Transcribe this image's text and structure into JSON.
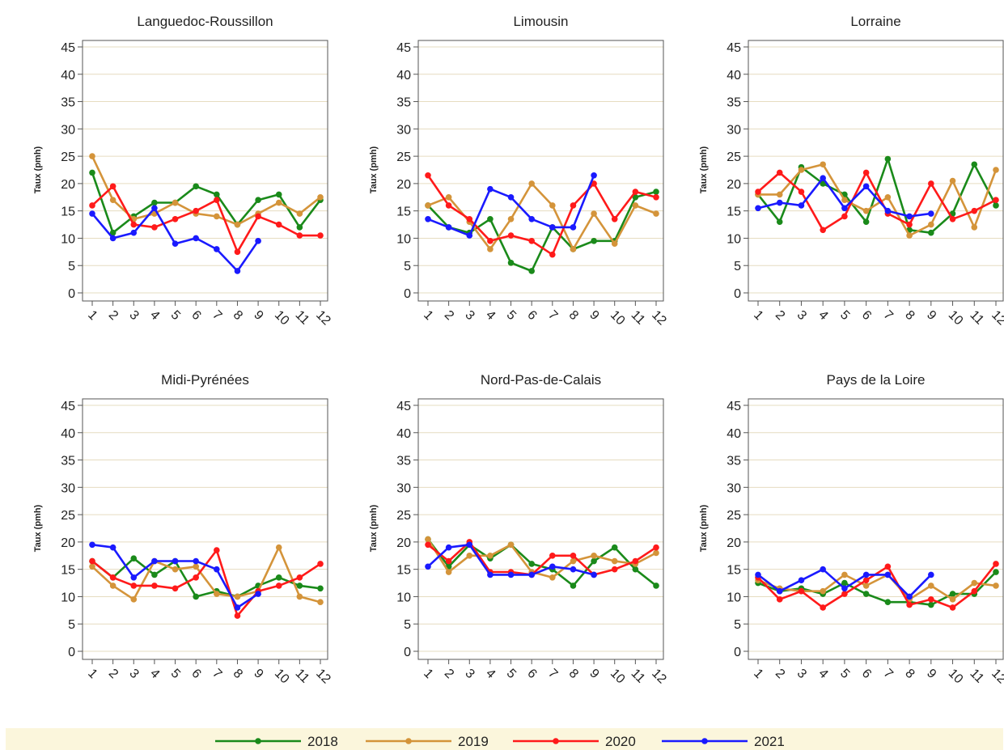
{
  "legend": {
    "items": [
      {
        "label": "2018",
        "color": "#1a8a1a"
      },
      {
        "label": "2019",
        "color": "#d4943a"
      },
      {
        "label": "2020",
        "color": "#ff1a1a"
      },
      {
        "label": "2021",
        "color": "#1a1aff"
      }
    ],
    "background": "#fbf6dc"
  },
  "chart_data": [
    {
      "type": "line",
      "title": "Languedoc-Roussillon",
      "ylabel": "Taux (pmh)",
      "x": [
        "1",
        "2",
        "3",
        "4",
        "5",
        "6",
        "7",
        "8",
        "9",
        "10",
        "11",
        "12"
      ],
      "ylim": [
        0,
        45
      ],
      "yticks": [
        0,
        5,
        10,
        15,
        20,
        25,
        30,
        35,
        40,
        45
      ],
      "grid": true,
      "series": [
        {
          "name": "2018",
          "values": [
            22.0,
            11.0,
            14.0,
            16.5,
            16.5,
            19.5,
            18.0,
            12.5,
            17.0,
            18.0,
            12.0,
            17.0
          ]
        },
        {
          "name": "2019",
          "values": [
            25.0,
            17.0,
            13.5,
            14.5,
            16.5,
            14.5,
            14.0,
            12.5,
            14.5,
            16.5,
            14.5,
            17.5
          ]
        },
        {
          "name": "2020",
          "values": [
            16.0,
            19.5,
            12.5,
            12.0,
            13.5,
            15.0,
            17.0,
            7.5,
            14.0,
            12.5,
            10.5,
            10.5
          ]
        },
        {
          "name": "2021",
          "values": [
            14.5,
            10.0,
            11.0,
            15.5,
            9.0,
            10.0,
            8.0,
            4.0,
            9.5,
            null,
            null,
            null
          ]
        }
      ]
    },
    {
      "type": "line",
      "title": "Limousin",
      "ylabel": "Taux (pmh)",
      "x": [
        "1",
        "2",
        "3",
        "4",
        "5",
        "6",
        "7",
        "8",
        "9",
        "10",
        "11",
        "12"
      ],
      "ylim": [
        0,
        45
      ],
      "yticks": [
        0,
        5,
        10,
        15,
        20,
        25,
        30,
        35,
        40,
        45
      ],
      "grid": true,
      "series": [
        {
          "name": "2018",
          "values": [
            16.0,
            12.0,
            11.0,
            13.5,
            5.5,
            4.0,
            12.0,
            8.0,
            9.5,
            9.5,
            17.5,
            18.5
          ]
        },
        {
          "name": "2019",
          "values": [
            16.0,
            17.5,
            13.0,
            8.0,
            13.5,
            20.0,
            16.0,
            8.0,
            14.5,
            9.0,
            16.0,
            14.5
          ]
        },
        {
          "name": "2020",
          "values": [
            21.5,
            16.0,
            13.5,
            9.5,
            10.5,
            9.5,
            7.0,
            16.0,
            20.0,
            13.5,
            18.5,
            17.5
          ]
        },
        {
          "name": "2021",
          "values": [
            13.5,
            12.0,
            10.5,
            19.0,
            17.5,
            13.5,
            12.0,
            12.0,
            21.5,
            null,
            null,
            null
          ]
        }
      ]
    },
    {
      "type": "line",
      "title": "Lorraine",
      "ylabel": "Taux (pmh)",
      "x": [
        "1",
        "2",
        "3",
        "4",
        "5",
        "6",
        "7",
        "8",
        "9",
        "10",
        "11",
        "12"
      ],
      "ylim": [
        0,
        45
      ],
      "yticks": [
        0,
        5,
        10,
        15,
        20,
        25,
        30,
        35,
        40,
        45
      ],
      "grid": true,
      "series": [
        {
          "name": "2018",
          "values": [
            18.0,
            13.0,
            23.0,
            20.0,
            18.0,
            13.0,
            24.5,
            11.5,
            11.0,
            14.5,
            23.5,
            16.0
          ]
        },
        {
          "name": "2019",
          "values": [
            18.0,
            18.0,
            22.5,
            23.5,
            17.0,
            15.0,
            17.5,
            10.5,
            12.5,
            20.5,
            12.0,
            22.5
          ]
        },
        {
          "name": "2020",
          "values": [
            18.5,
            22.0,
            18.5,
            11.5,
            14.0,
            22.0,
            14.5,
            12.5,
            20.0,
            13.5,
            15.0,
            17.0
          ]
        },
        {
          "name": "2021",
          "values": [
            15.5,
            16.5,
            16.0,
            21.0,
            15.5,
            19.5,
            15.0,
            14.0,
            14.5,
            null,
            null,
            null
          ]
        }
      ]
    },
    {
      "type": "line",
      "title": "Midi-Pyrénées",
      "ylabel": "Taux (pmh)",
      "x": [
        "1",
        "2",
        "3",
        "4",
        "5",
        "6",
        "7",
        "8",
        "9",
        "10",
        "11",
        "12"
      ],
      "ylim": [
        0,
        45
      ],
      "yticks": [
        0,
        5,
        10,
        15,
        20,
        25,
        30,
        35,
        40,
        45
      ],
      "grid": true,
      "series": [
        {
          "name": "2018",
          "values": [
            16.5,
            13.5,
            17.0,
            14.0,
            16.5,
            10.0,
            11.0,
            10.0,
            12.0,
            13.5,
            12.0,
            11.5
          ]
        },
        {
          "name": "2019",
          "values": [
            15.5,
            12.0,
            9.5,
            16.5,
            15.0,
            15.5,
            10.5,
            10.0,
            11.0,
            19.0,
            10.0,
            9.0
          ]
        },
        {
          "name": "2020",
          "values": [
            16.5,
            13.5,
            12.0,
            12.0,
            11.5,
            13.5,
            18.5,
            6.5,
            11.0,
            12.0,
            13.5,
            16.0
          ]
        },
        {
          "name": "2021",
          "values": [
            19.5,
            19.0,
            13.5,
            16.5,
            16.5,
            16.5,
            15.0,
            8.0,
            10.5,
            null,
            null,
            null
          ]
        }
      ]
    },
    {
      "type": "line",
      "title": "Nord-Pas-de-Calais",
      "ylabel": "Taux (pmh)",
      "x": [
        "1",
        "2",
        "3",
        "4",
        "5",
        "6",
        "7",
        "8",
        "9",
        "10",
        "11",
        "12"
      ],
      "ylim": [
        0,
        45
      ],
      "yticks": [
        0,
        5,
        10,
        15,
        20,
        25,
        30,
        35,
        40,
        45
      ],
      "grid": true,
      "series": [
        {
          "name": "2018",
          "values": [
            20.5,
            15.5,
            19.5,
            17.0,
            19.5,
            16.0,
            15.0,
            12.0,
            16.5,
            19.0,
            15.0,
            12.0
          ]
        },
        {
          "name": "2019",
          "values": [
            20.5,
            14.5,
            17.5,
            17.5,
            19.5,
            14.5,
            13.5,
            16.5,
            17.5,
            16.5,
            16.0,
            18.0
          ]
        },
        {
          "name": "2020",
          "values": [
            19.5,
            16.5,
            20.0,
            14.5,
            14.5,
            14.0,
            17.5,
            17.5,
            14.0,
            15.0,
            16.5,
            19.0
          ]
        },
        {
          "name": "2021",
          "values": [
            15.5,
            19.0,
            19.5,
            14.0,
            14.0,
            14.0,
            15.5,
            15.0,
            14.0,
            null,
            null,
            null
          ]
        }
      ]
    },
    {
      "type": "line",
      "title": "Pays de la Loire",
      "ylabel": "Taux (pmh)",
      "x": [
        "1",
        "2",
        "3",
        "4",
        "5",
        "6",
        "7",
        "8",
        "9",
        "10",
        "11",
        "12"
      ],
      "ylim": [
        0,
        45
      ],
      "yticks": [
        0,
        5,
        10,
        15,
        20,
        25,
        30,
        35,
        40,
        45
      ],
      "grid": true,
      "series": [
        {
          "name": "2018",
          "values": [
            12.5,
            11.0,
            11.5,
            10.5,
            12.5,
            10.5,
            9.0,
            9.0,
            8.5,
            10.5,
            10.5,
            14.5
          ]
        },
        {
          "name": "2019",
          "values": [
            13.0,
            11.5,
            11.0,
            11.0,
            14.0,
            12.0,
            14.0,
            9.5,
            12.0,
            9.5,
            12.5,
            12.0
          ]
        },
        {
          "name": "2020",
          "values": [
            13.5,
            9.5,
            11.0,
            8.0,
            10.5,
            13.0,
            15.5,
            8.5,
            9.5,
            8.0,
            11.0,
            16.0
          ]
        },
        {
          "name": "2021",
          "values": [
            14.0,
            11.0,
            13.0,
            15.0,
            11.5,
            14.0,
            14.0,
            10.0,
            14.0,
            null,
            null,
            null
          ]
        }
      ]
    }
  ]
}
